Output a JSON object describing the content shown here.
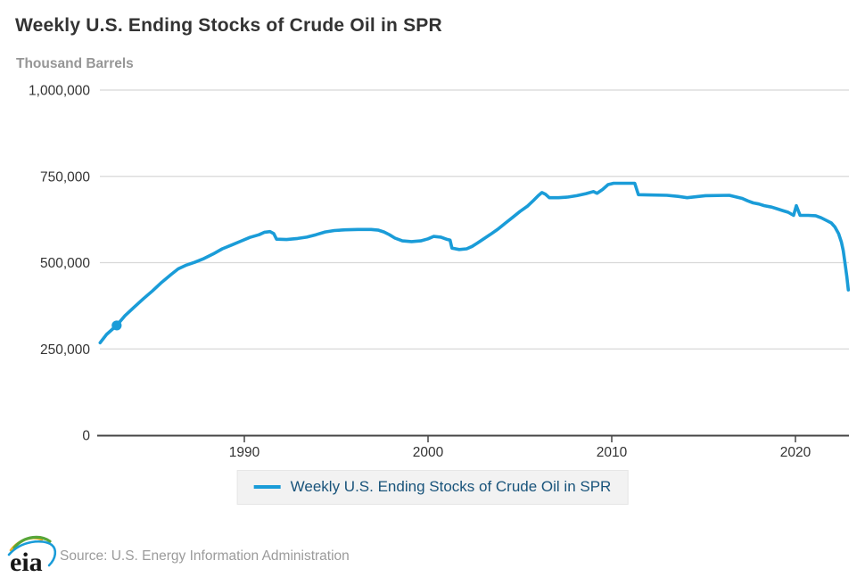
{
  "header": {
    "title": "Weekly U.S. Ending Stocks of Crude Oil in SPR",
    "units_label": "Thousand Barrels"
  },
  "legend": {
    "label": "Weekly U.S. Ending Stocks of Crude Oil in SPR"
  },
  "footer": {
    "logo_text": "eia",
    "source": "Source: U.S. Energy Information Administration"
  },
  "colors": {
    "line": "#1a9cd8",
    "marker": "#1a9cd8",
    "grid": "#d8d8d8",
    "axis": "#444444",
    "tick_label": "#333333",
    "title": "#333333",
    "subtitle": "#969696",
    "legend_text": "#19547b",
    "legend_bg": "#f2f2f2",
    "source_text": "#9b9b9b",
    "logo_yellow": "#f2b01e",
    "logo_green": "#57a639",
    "logo_blue": "#1a9cd8"
  },
  "chart_data": {
    "type": "line",
    "title": "Weekly U.S. Ending Stocks of Crude Oil in SPR",
    "xlabel": "",
    "ylabel": "Thousand Barrels",
    "grid": true,
    "legend_position": "bottom",
    "x_range": [
      1982,
      2023
    ],
    "ylim": [
      0,
      1000000
    ],
    "yticks": [
      {
        "value": 0,
        "label": "0"
      },
      {
        "value": 250000,
        "label": "250,000"
      },
      {
        "value": 500000,
        "label": "500,000"
      },
      {
        "value": 750000,
        "label": "750,000"
      },
      {
        "value": 1000000,
        "label": "1,000,000"
      }
    ],
    "xticks": [
      {
        "value": 1990,
        "label": "1990"
      },
      {
        "value": 2000,
        "label": "2000"
      },
      {
        "value": 2010,
        "label": "2010"
      },
      {
        "value": 2020,
        "label": "2020"
      }
    ],
    "marker": {
      "x": 1983.05,
      "y": 318000
    },
    "series": [
      {
        "name": "Weekly U.S. Ending Stocks of Crude Oil in SPR",
        "points": [
          [
            1982.15,
            268000
          ],
          [
            1982.5,
            292000
          ],
          [
            1983.05,
            318000
          ],
          [
            1983.5,
            346000
          ],
          [
            1984.0,
            371000
          ],
          [
            1984.5,
            395000
          ],
          [
            1985.0,
            418000
          ],
          [
            1985.5,
            443000
          ],
          [
            1986.0,
            465000
          ],
          [
            1986.4,
            482000
          ],
          [
            1986.8,
            492000
          ],
          [
            1987.3,
            501000
          ],
          [
            1987.8,
            512000
          ],
          [
            1988.3,
            525000
          ],
          [
            1988.8,
            540000
          ],
          [
            1989.3,
            551000
          ],
          [
            1989.8,
            562000
          ],
          [
            1990.3,
            573000
          ],
          [
            1990.8,
            581000
          ],
          [
            1991.1,
            588000
          ],
          [
            1991.4,
            590000
          ],
          [
            1991.6,
            584000
          ],
          [
            1991.75,
            568000
          ],
          [
            1992.3,
            567000
          ],
          [
            1992.9,
            570000
          ],
          [
            1993.4,
            574000
          ],
          [
            1993.9,
            581000
          ],
          [
            1994.4,
            589000
          ],
          [
            1994.9,
            593000
          ],
          [
            1995.5,
            595000
          ],
          [
            1996.2,
            596000
          ],
          [
            1996.9,
            596000
          ],
          [
            1997.3,
            594000
          ],
          [
            1997.6,
            589000
          ],
          [
            1997.9,
            581000
          ],
          [
            1998.2,
            571000
          ],
          [
            1998.6,
            563000
          ],
          [
            1999.1,
            561000
          ],
          [
            1999.6,
            563000
          ],
          [
            2000.0,
            569000
          ],
          [
            2000.3,
            576000
          ],
          [
            2000.7,
            574000
          ],
          [
            2001.0,
            568000
          ],
          [
            2001.2,
            565000
          ],
          [
            2001.3,
            542000
          ],
          [
            2001.7,
            538000
          ],
          [
            2002.1,
            540000
          ],
          [
            2002.4,
            547000
          ],
          [
            2002.7,
            557000
          ],
          [
            2003.0,
            568000
          ],
          [
            2003.4,
            582000
          ],
          [
            2003.8,
            597000
          ],
          [
            2004.2,
            614000
          ],
          [
            2004.6,
            631000
          ],
          [
            2005.0,
            648000
          ],
          [
            2005.4,
            663000
          ],
          [
            2005.7,
            678000
          ],
          [
            2006.0,
            694000
          ],
          [
            2006.2,
            703000
          ],
          [
            2006.4,
            698000
          ],
          [
            2006.6,
            688000
          ],
          [
            2007.1,
            688000
          ],
          [
            2007.6,
            690000
          ],
          [
            2008.1,
            694000
          ],
          [
            2008.6,
            700000
          ],
          [
            2009.0,
            706000
          ],
          [
            2009.2,
            701000
          ],
          [
            2009.5,
            712000
          ],
          [
            2009.8,
            726000
          ],
          [
            2010.1,
            730000
          ],
          [
            2011.25,
            730000
          ],
          [
            2011.45,
            697000
          ],
          [
            2012.0,
            696000
          ],
          [
            2013.0,
            695000
          ],
          [
            2013.6,
            692000
          ],
          [
            2014.1,
            688000
          ],
          [
            2014.6,
            691000
          ],
          [
            2015.1,
            694000
          ],
          [
            2016.4,
            695000
          ],
          [
            2016.8,
            690000
          ],
          [
            2017.1,
            686000
          ],
          [
            2017.4,
            679000
          ],
          [
            2017.7,
            673000
          ],
          [
            2018.0,
            670000
          ],
          [
            2018.3,
            665000
          ],
          [
            2018.7,
            661000
          ],
          [
            2019.0,
            656000
          ],
          [
            2019.3,
            651000
          ],
          [
            2019.6,
            646000
          ],
          [
            2019.9,
            637000
          ],
          [
            2020.05,
            665000
          ],
          [
            2020.25,
            637000
          ],
          [
            2020.7,
            637000
          ],
          [
            2021.1,
            636000
          ],
          [
            2021.4,
            630000
          ],
          [
            2021.7,
            622000
          ],
          [
            2021.95,
            615000
          ],
          [
            2022.15,
            603000
          ],
          [
            2022.35,
            584000
          ],
          [
            2022.5,
            560000
          ],
          [
            2022.6,
            535000
          ],
          [
            2022.7,
            498000
          ],
          [
            2022.8,
            458000
          ],
          [
            2022.88,
            421000
          ]
        ]
      }
    ]
  }
}
